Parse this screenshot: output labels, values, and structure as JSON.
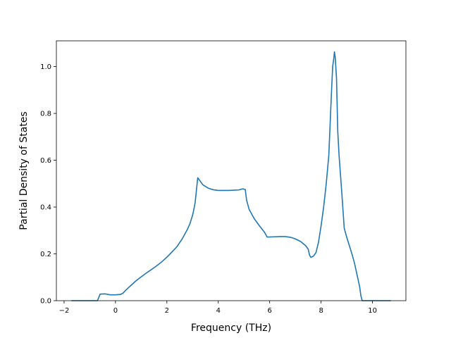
{
  "chart_data": {
    "type": "line",
    "title": "",
    "xlabel": "Frequency (THz)",
    "ylabel": "Partial Density of States",
    "xlim": [
      -2.3,
      11.3
    ],
    "ylim": [
      0.0,
      1.11
    ],
    "xticks": [
      -2,
      0,
      2,
      4,
      6,
      8,
      10
    ],
    "xtick_labels": [
      "−2",
      "0",
      "2",
      "4",
      "6",
      "8",
      "10"
    ],
    "yticks": [
      0.0,
      0.2,
      0.4,
      0.6,
      0.8,
      1.0
    ],
    "ytick_labels": [
      "0.0",
      "0.2",
      "0.4",
      "0.6",
      "0.8",
      "1.0"
    ],
    "grid": false,
    "legend": "none",
    "series": [
      {
        "color": "#1f77b4",
        "x": [
          -1.7,
          -0.7,
          -0.6,
          -0.4,
          -0.2,
          0.0,
          0.2,
          0.3,
          0.4,
          0.5,
          0.6,
          0.8,
          1.0,
          1.2,
          1.4,
          1.6,
          1.8,
          2.0,
          2.2,
          2.4,
          2.6,
          2.8,
          2.9,
          3.0,
          3.05,
          3.1,
          3.2,
          3.4,
          3.6,
          3.8,
          4.0,
          4.2,
          4.4,
          4.6,
          4.8,
          4.95,
          5.05,
          5.1,
          5.2,
          5.4,
          5.6,
          5.8,
          5.9,
          6.0,
          6.2,
          6.4,
          6.6,
          6.8,
          7.0,
          7.2,
          7.4,
          7.5,
          7.55,
          7.6,
          7.7,
          7.8,
          7.9,
          8.0,
          8.1,
          8.2,
          8.3,
          8.35,
          8.4,
          8.45,
          8.5,
          8.52,
          8.55,
          8.6,
          8.65,
          8.7,
          8.8,
          8.9,
          9.0,
          9.1,
          9.2,
          9.3,
          9.4,
          9.5,
          9.55,
          9.6,
          9.65,
          9.7,
          10.0,
          10.7
        ],
        "y": [
          0.0,
          0.0,
          0.028,
          0.029,
          0.025,
          0.025,
          0.027,
          0.033,
          0.045,
          0.055,
          0.065,
          0.085,
          0.102,
          0.118,
          0.133,
          0.149,
          0.166,
          0.186,
          0.208,
          0.232,
          0.265,
          0.305,
          0.33,
          0.365,
          0.39,
          0.42,
          0.525,
          0.495,
          0.481,
          0.474,
          0.471,
          0.471,
          0.471,
          0.472,
          0.473,
          0.478,
          0.475,
          0.43,
          0.39,
          0.35,
          0.32,
          0.292,
          0.272,
          0.272,
          0.273,
          0.274,
          0.274,
          0.271,
          0.264,
          0.253,
          0.235,
          0.22,
          0.195,
          0.185,
          0.19,
          0.205,
          0.25,
          0.32,
          0.4,
          0.5,
          0.62,
          0.75,
          0.88,
          1.0,
          1.04,
          1.063,
          1.04,
          0.95,
          0.72,
          0.62,
          0.47,
          0.31,
          0.27,
          0.235,
          0.2,
          0.16,
          0.11,
          0.06,
          0.02,
          0.0,
          0.0,
          0.0,
          0.0,
          0.0
        ]
      }
    ]
  }
}
